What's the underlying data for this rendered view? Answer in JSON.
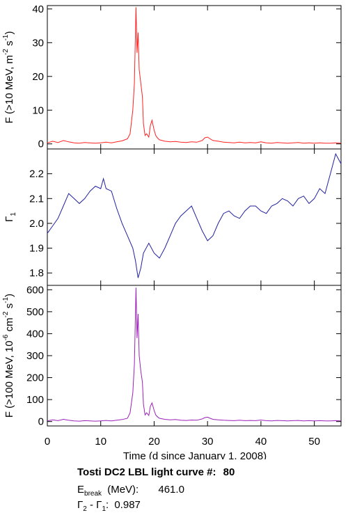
{
  "chart_data": {
    "type": "line",
    "x_axis": {
      "label": "Time (d since January 1, 2008)",
      "range": [
        0,
        55
      ],
      "ticks": [
        0,
        10,
        20,
        30,
        40,
        50
      ]
    },
    "panels": [
      {
        "ylabel_parts": [
          "F (>10 MeV, m",
          "-2",
          " s",
          "-1",
          ")"
        ],
        "ylim": [
          -1.5,
          41
        ],
        "yticks": [
          0,
          10,
          20,
          30,
          40
        ],
        "color": "#ff2020",
        "series": {
          "x": [
            0,
            1,
            2,
            3,
            4,
            5,
            6,
            7,
            8,
            9,
            10,
            11,
            12,
            13,
            14,
            15,
            15.5,
            16,
            16.3,
            16.6,
            16.8,
            17,
            17.2,
            17.5,
            17.8,
            18,
            18.3,
            18.6,
            19,
            19.3,
            19.6,
            20,
            20.3,
            20.6,
            21,
            22,
            23,
            24,
            25,
            26,
            27,
            28,
            29,
            29.5,
            30,
            30.5,
            31,
            32,
            33,
            34,
            35,
            36,
            37,
            38,
            39,
            40,
            41,
            42,
            43,
            44,
            45,
            46,
            47,
            48,
            49,
            50,
            51,
            52,
            53,
            54,
            55
          ],
          "y": [
            0.3,
            0.8,
            0.4,
            1.0,
            0.6,
            0.3,
            0.2,
            0.4,
            0.3,
            0.2,
            0.3,
            0.5,
            0.3,
            0.6,
            0.9,
            1.5,
            3.0,
            10.0,
            18.0,
            40.5,
            27.0,
            33.0,
            22.0,
            18.0,
            14.0,
            6.0,
            2.5,
            3.0,
            2.0,
            5.5,
            7.0,
            4.0,
            2.5,
            1.8,
            1.2,
            0.8,
            0.6,
            0.7,
            0.5,
            0.4,
            0.6,
            0.5,
            1.0,
            1.8,
            2.0,
            1.5,
            1.0,
            0.8,
            0.5,
            0.4,
            0.3,
            0.5,
            0.3,
            0.4,
            0.3,
            0.6,
            0.3,
            0.2,
            0.4,
            0.3,
            0.2,
            0.3,
            0.4,
            0.2,
            0.3,
            0.2,
            0.3,
            0.2,
            0.2,
            0.3,
            0.2
          ]
        }
      },
      {
        "ylabel_parts": [
          "Γ",
          "1"
        ],
        "ylim": [
          1.75,
          2.3
        ],
        "yticks": [
          1.8,
          1.9,
          2.0,
          2.1,
          2.2
        ],
        "tick_format": 1,
        "color": "#2020a0",
        "series": {
          "x": [
            0,
            1,
            2,
            3,
            4,
            5,
            6,
            7,
            8,
            9,
            10,
            10.5,
            11,
            12,
            13,
            14,
            15,
            16,
            16.5,
            17,
            17.5,
            18,
            19,
            20,
            21,
            22,
            23,
            24,
            25,
            26,
            27,
            28,
            29,
            30,
            31,
            32,
            33,
            34,
            35,
            36,
            37,
            38,
            39,
            40,
            41,
            42,
            43,
            44,
            45,
            46,
            47,
            48,
            49,
            50,
            51,
            52,
            53,
            54,
            55
          ],
          "y": [
            1.96,
            1.99,
            2.02,
            2.07,
            2.12,
            2.1,
            2.08,
            2.1,
            2.13,
            2.15,
            2.14,
            2.18,
            2.14,
            2.13,
            2.06,
            2.0,
            1.95,
            1.9,
            1.85,
            1.78,
            1.82,
            1.88,
            1.92,
            1.88,
            1.86,
            1.9,
            1.95,
            2.0,
            2.03,
            2.05,
            2.07,
            2.02,
            1.97,
            1.93,
            1.95,
            2.0,
            2.04,
            2.05,
            2.03,
            2.02,
            2.05,
            2.07,
            2.07,
            2.05,
            2.04,
            2.07,
            2.08,
            2.1,
            2.09,
            2.07,
            2.1,
            2.11,
            2.08,
            2.1,
            2.14,
            2.12,
            2.2,
            2.28,
            2.24
          ]
        }
      },
      {
        "ylabel_parts": [
          "F (>100 MeV, 10",
          "-6",
          " cm",
          "-2",
          " s",
          "-1",
          ")"
        ],
        "ylim": [
          -20,
          620
        ],
        "yticks": [
          0,
          100,
          200,
          300,
          400,
          500,
          600
        ],
        "color": "#9a20b8",
        "series": {
          "x": [
            0,
            1,
            2,
            3,
            4,
            5,
            6,
            7,
            8,
            9,
            10,
            11,
            12,
            13,
            14,
            15,
            15.5,
            16,
            16.3,
            16.6,
            16.8,
            17,
            17.2,
            17.5,
            17.8,
            18,
            18.3,
            18.6,
            19,
            19.3,
            19.6,
            20,
            20.3,
            20.6,
            21,
            22,
            23,
            24,
            25,
            26,
            27,
            28,
            29,
            29.5,
            30,
            30.5,
            31,
            32,
            33,
            34,
            35,
            36,
            37,
            38,
            39,
            40,
            41,
            42,
            43,
            44,
            45,
            46,
            47,
            48,
            49,
            50,
            51,
            52,
            53,
            54,
            55
          ],
          "y": [
            3,
            8,
            4,
            10,
            6,
            3,
            2,
            4,
            3,
            2,
            3,
            5,
            3,
            6,
            9,
            15,
            40,
            130,
            260,
            610,
            380,
            490,
            300,
            230,
            180,
            80,
            30,
            40,
            28,
            70,
            85,
            50,
            30,
            22,
            15,
            10,
            8,
            9,
            6,
            5,
            7,
            6,
            12,
            18,
            20,
            15,
            10,
            8,
            6,
            5,
            4,
            6,
            4,
            5,
            4,
            7,
            4,
            3,
            5,
            4,
            3,
            4,
            5,
            3,
            4,
            3,
            4,
            3,
            3,
            4,
            3
          ]
        }
      }
    ]
  },
  "info": {
    "title": "Tosti DC2 LBL light curve #:",
    "curve_number": "80",
    "ebreak_symbol": "E",
    "ebreak_sub": "break",
    "ebreak_unit": "(MeV):",
    "ebreak_value": "461.0",
    "gamma2_symbol": "Γ",
    "gamma2_sub": "2",
    "gamma_sep": "-",
    "gamma1_symbol": "Γ",
    "gamma1_sub": "1",
    "gamma_colon": ":",
    "gamma_diff_value": "0.987"
  }
}
